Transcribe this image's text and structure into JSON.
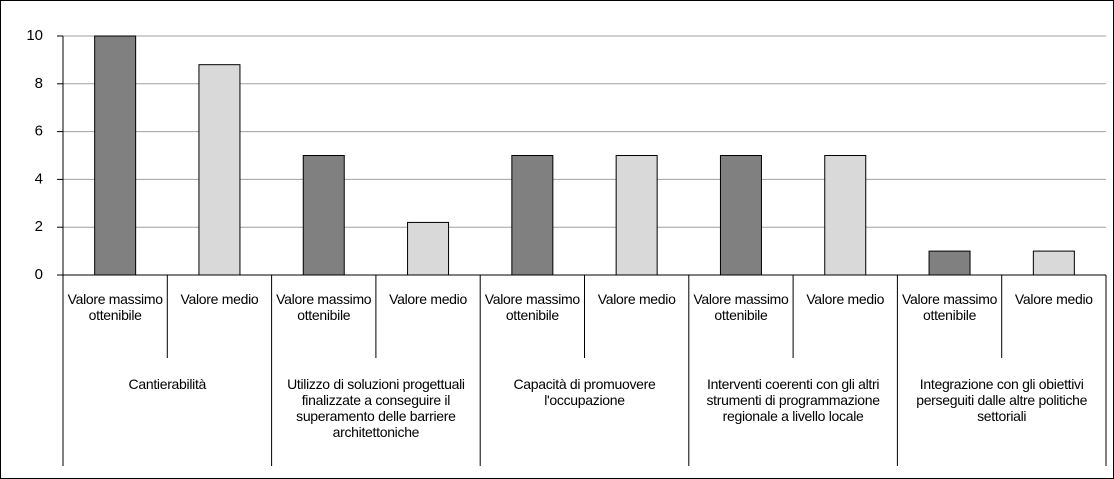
{
  "chart_data": {
    "type": "bar",
    "categories": [
      "Valore massimo ottenibile",
      "Valore medio",
      "Valore massimo ottenibile",
      "Valore medio",
      "Valore massimo ottenibile",
      "Valore medio",
      "Valore massimo ottenibile",
      "Valore medio",
      "Valore massimo ottenibile",
      "Valore medio"
    ],
    "groups": [
      "Cantierabilità",
      "Utilizzo di soluzioni progettuali finalizzate a conseguire il superamento delle barriere architettoniche",
      "Capacità di promuovere l'occupazione",
      "Interventi coerenti con gli altri strumenti di programmazione regionale a livello locale",
      "Integrazione con gli obiettivi perseguiti dalle altre politiche settoriali"
    ],
    "values": [
      10,
      8.8,
      5,
      2.2,
      5,
      5,
      5,
      5,
      1,
      1
    ],
    "colors": [
      "#808080",
      "#d9d9d9",
      "#808080",
      "#d9d9d9",
      "#808080",
      "#d9d9d9",
      "#808080",
      "#d9d9d9",
      "#808080",
      "#d9d9d9"
    ],
    "ylim": [
      0,
      10
    ],
    "yticks": [
      0,
      2,
      4,
      6,
      8,
      10
    ],
    "grid": true
  }
}
